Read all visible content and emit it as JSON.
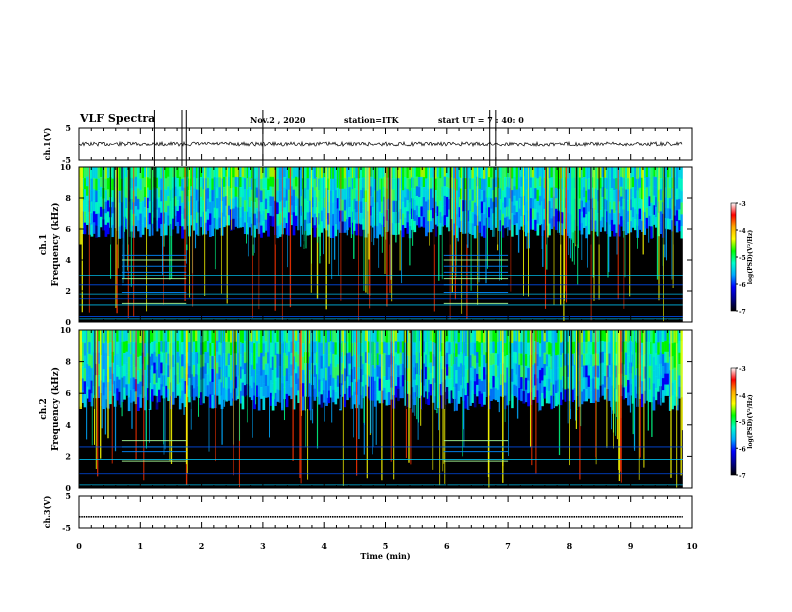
{
  "header": {
    "title": "VLF Spectra",
    "date": "Nov.2 , 2020",
    "station": "station=ITK",
    "start": "start UT = 7 : 40: 0"
  },
  "colors": {
    "background": "#ffffff",
    "spectrogram_floor": "#000000",
    "axis": "#000000",
    "colormap": [
      "#000000",
      "#00008b",
      "#0000ff",
      "#00aaff",
      "#00ffcc",
      "#00ff00",
      "#ffff00",
      "#ffaa00",
      "#ff0000",
      "#ffffff"
    ]
  },
  "chart_data": [
    {
      "type": "line",
      "id": "ch1-waveform",
      "ylabel": "ch.1(V)",
      "ylim": [
        -5,
        5
      ],
      "yticks": [
        "5",
        "-5"
      ],
      "xlim": [
        0,
        10
      ],
      "baseline": 0,
      "spike_times": [
        1.23,
        1.68,
        1.75,
        3.0,
        6.7,
        6.8
      ]
    },
    {
      "type": "heatmap",
      "id": "ch1-spectrogram",
      "ylabel": "ch.1 Frequency (kHz)",
      "ylim": [
        0,
        10
      ],
      "yticks": [
        "0",
        "2",
        "4",
        "6",
        "8",
        "10"
      ],
      "xlim": [
        0,
        10
      ],
      "colorbar": {
        "label": "log(PSD)(V²/Hz)",
        "range": [
          -7,
          -3
        ],
        "ticks": [
          "-3",
          "-4",
          "-5",
          "-6",
          "-7"
        ]
      }
    },
    {
      "type": "heatmap",
      "id": "ch2-spectrogram",
      "ylabel": "ch.2 Frequency (kHz)",
      "ylim": [
        0,
        10
      ],
      "yticks": [
        "0",
        "2",
        "4",
        "6",
        "8",
        "10"
      ],
      "xlim": [
        0,
        10
      ],
      "colorbar": {
        "label": "log(PSD)(V²/Hz)",
        "range": [
          -7,
          -3
        ],
        "ticks": [
          "-3",
          "-4",
          "-5",
          "-6",
          "-7"
        ]
      }
    },
    {
      "type": "line",
      "id": "ch3-waveform",
      "ylabel": "ch.3(V)",
      "ylim": [
        -5,
        5
      ],
      "yticks": [
        "5",
        "-5"
      ],
      "xlim": [
        0,
        10
      ],
      "baseline": -1.5
    }
  ],
  "xaxis": {
    "label": "Time (min)",
    "ticks": [
      "0",
      "1",
      "2",
      "3",
      "4",
      "5",
      "6",
      "7",
      "8",
      "9",
      "10"
    ],
    "range": [
      0,
      10
    ],
    "data_end": 9.85
  }
}
